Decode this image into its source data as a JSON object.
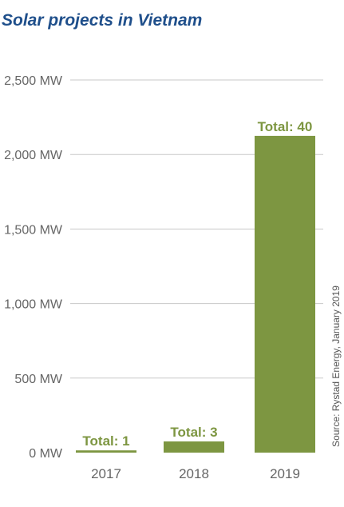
{
  "colors": {
    "title": "#1f4f8b",
    "bar": "#7d9641",
    "grid": "#c8c8c8",
    "axis_text": "#666666",
    "source_text": "#555555"
  },
  "chart_data": {
    "type": "bar",
    "title": "Solar projects in Vietnam",
    "categories": [
      "2017",
      "2018",
      "2019"
    ],
    "values": [
      15,
      75,
      2125
    ],
    "data_labels": [
      "Total: 1",
      "Total: 3",
      "Total: 40"
    ],
    "ylim": [
      0,
      2500
    ],
    "yticks": [
      0,
      500,
      1000,
      1500,
      2000,
      2500
    ],
    "ytick_labels": [
      "0 MW",
      "500 MW",
      "1,000 MW",
      "1,500 MW",
      "2,000 MW",
      "2,500 MW"
    ],
    "grid": true,
    "source": "Source: Rystad Energy, January 2019"
  }
}
